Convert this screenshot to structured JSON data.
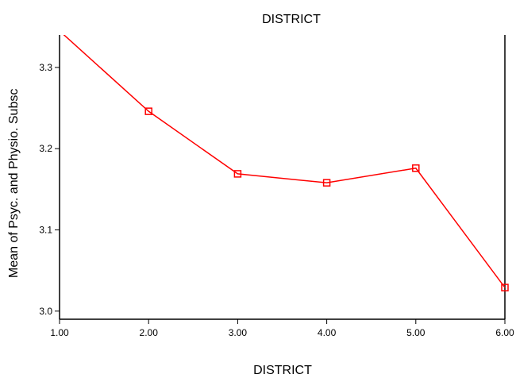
{
  "chart_data": {
    "type": "line",
    "title": "DISTRICT",
    "xlabel": "DISTRICT",
    "ylabel": "Mean of Psyc. and Physio. Subsc",
    "x": [
      1.0,
      2.0,
      3.0,
      4.0,
      5.0,
      6.0
    ],
    "x_tick_labels": [
      "1.00",
      "2.00",
      "3.00",
      "4.00",
      "5.00",
      "6.00"
    ],
    "y_ticks": [
      3.0,
      3.1,
      3.2,
      3.3
    ],
    "y_tick_labels": [
      "3.0",
      "3.1",
      "3.2",
      "3.3"
    ],
    "series": [
      {
        "values": [
          3.345,
          3.246,
          3.169,
          3.158,
          3.176,
          3.029
        ],
        "color": "#ff0000",
        "marker": "hollow-square"
      }
    ],
    "xlim": [
      1.0,
      6.0
    ],
    "ylim": [
      2.99,
      3.34
    ],
    "grid": false,
    "legend": "none"
  }
}
